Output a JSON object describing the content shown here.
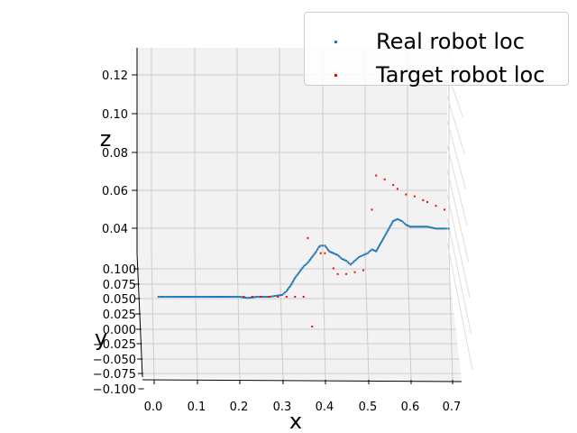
{
  "chart_data": {
    "type": "scatter",
    "projection": "3d",
    "xlabel": "x",
    "ylabel": "y",
    "zlabel": "z",
    "x_ticks": [
      "0.0",
      "0.1",
      "0.2",
      "0.3",
      "0.4",
      "0.5",
      "0.6",
      "0.7"
    ],
    "y_ticks": [
      "0.100",
      "0.075",
      "0.050",
      "0.025",
      "0.000",
      "−0.025",
      "−0.050",
      "−0.075",
      "−0.100"
    ],
    "z_ticks": [
      "0.12",
      "0.10",
      "0.08",
      "0.06",
      "0.04"
    ],
    "xlim": [
      -0.02,
      0.72
    ],
    "ylim": [
      -0.1,
      0.1
    ],
    "zlim": [
      0.02,
      0.13
    ],
    "grid": true,
    "legend_position": "top-right",
    "series": [
      {
        "name": "Real robot loc",
        "color": "#1f77b4",
        "points": [
          [
            0.01,
            0.05,
            0.02
          ],
          [
            0.05,
            0.05,
            0.02
          ],
          [
            0.1,
            0.05,
            0.02
          ],
          [
            0.15,
            0.05,
            0.02
          ],
          [
            0.2,
            0.05,
            0.02
          ],
          [
            0.22,
            0.048,
            0.02
          ],
          [
            0.24,
            0.05,
            0.02
          ],
          [
            0.27,
            0.05,
            0.02
          ],
          [
            0.3,
            0.05,
            0.021
          ],
          [
            0.31,
            0.05,
            0.023
          ],
          [
            0.32,
            0.05,
            0.026
          ],
          [
            0.33,
            0.05,
            0.03
          ],
          [
            0.34,
            0.05,
            0.033
          ],
          [
            0.35,
            0.05,
            0.036
          ],
          [
            0.36,
            0.05,
            0.038
          ],
          [
            0.37,
            0.05,
            0.041
          ],
          [
            0.38,
            0.05,
            0.044
          ],
          [
            0.385,
            0.05,
            0.046
          ],
          [
            0.39,
            0.05,
            0.047
          ],
          [
            0.4,
            0.05,
            0.047
          ],
          [
            0.41,
            0.05,
            0.044
          ],
          [
            0.42,
            0.05,
            0.043
          ],
          [
            0.43,
            0.05,
            0.042
          ],
          [
            0.44,
            0.05,
            0.04
          ],
          [
            0.45,
            0.05,
            0.039
          ],
          [
            0.46,
            0.05,
            0.037
          ],
          [
            0.47,
            0.05,
            0.039
          ],
          [
            0.48,
            0.05,
            0.041
          ],
          [
            0.5,
            0.05,
            0.043
          ],
          [
            0.51,
            0.05,
            0.045
          ],
          [
            0.52,
            0.05,
            0.044
          ],
          [
            0.53,
            0.05,
            0.048
          ],
          [
            0.54,
            0.05,
            0.052
          ],
          [
            0.55,
            0.05,
            0.056
          ],
          [
            0.56,
            0.05,
            0.06
          ],
          [
            0.57,
            0.05,
            0.061
          ],
          [
            0.58,
            0.05,
            0.06
          ],
          [
            0.59,
            0.05,
            0.058
          ],
          [
            0.6,
            0.05,
            0.057
          ],
          [
            0.62,
            0.05,
            0.057
          ],
          [
            0.64,
            0.05,
            0.057
          ],
          [
            0.66,
            0.05,
            0.056
          ],
          [
            0.68,
            0.05,
            0.056
          ],
          [
            0.69,
            0.05,
            0.056
          ]
        ]
      },
      {
        "name": "Target robot loc",
        "color": "#ff0000",
        "points": [
          [
            0.21,
            0.05,
            0.02
          ],
          [
            0.23,
            0.05,
            0.02
          ],
          [
            0.25,
            0.05,
            0.02
          ],
          [
            0.27,
            0.05,
            0.02
          ],
          [
            0.29,
            0.05,
            0.02
          ],
          [
            0.31,
            0.05,
            0.02
          ],
          [
            0.33,
            0.05,
            0.02
          ],
          [
            0.35,
            0.05,
            0.02
          ],
          [
            0.37,
            0.0,
            0.02
          ],
          [
            0.36,
            0.05,
            0.051
          ],
          [
            0.39,
            0.05,
            0.043
          ],
          [
            0.4,
            0.05,
            0.043
          ],
          [
            0.42,
            0.05,
            0.035
          ],
          [
            0.43,
            0.05,
            0.032
          ],
          [
            0.45,
            0.05,
            0.032
          ],
          [
            0.47,
            0.05,
            0.033
          ],
          [
            0.49,
            0.05,
            0.034
          ],
          [
            0.51,
            0.05,
            0.066
          ],
          [
            0.52,
            0.05,
            0.084
          ],
          [
            0.54,
            0.05,
            0.082
          ],
          [
            0.56,
            0.05,
            0.079
          ],
          [
            0.57,
            0.05,
            0.077
          ],
          [
            0.59,
            0.05,
            0.074
          ],
          [
            0.61,
            0.05,
            0.073
          ],
          [
            0.63,
            0.05,
            0.071
          ],
          [
            0.64,
            0.05,
            0.07
          ],
          [
            0.66,
            0.05,
            0.068
          ],
          [
            0.68,
            0.05,
            0.066
          ]
        ]
      }
    ]
  }
}
